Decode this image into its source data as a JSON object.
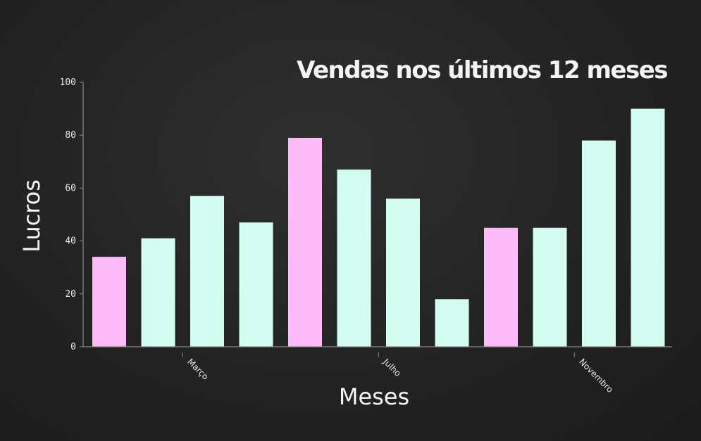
{
  "chart_data": {
    "type": "bar",
    "title": "Vendas nos últimos 12 meses",
    "xlabel": "Meses",
    "ylabel": "Lucros",
    "ylim": [
      0,
      100
    ],
    "yticks": [
      0,
      20,
      40,
      60,
      80,
      100
    ],
    "x": [
      1,
      2,
      3,
      4,
      5,
      6,
      7,
      8,
      9,
      10,
      11,
      12
    ],
    "values": [
      34,
      41,
      57,
      47,
      79,
      67,
      56,
      18,
      45,
      45,
      78,
      90
    ],
    "highlighted": [
      true,
      false,
      false,
      false,
      true,
      false,
      false,
      false,
      true,
      false,
      false,
      false
    ],
    "xtick_labels": [
      {
        "label": "Março",
        "after_bar": 2
      },
      {
        "label": "Julho",
        "after_bar": 6
      },
      {
        "label": "Novembro",
        "after_bar": 10
      }
    ],
    "colors": {
      "bar": "#d4fdf2",
      "highlight": "#fdbcf8",
      "axis": "#8a8a8a",
      "text": "#f4f4f4"
    },
    "grid": false,
    "legend": "none"
  }
}
